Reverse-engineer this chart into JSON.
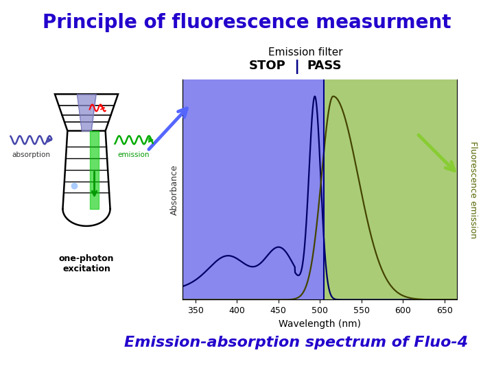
{
  "title": "Principle of fluorescence measurment",
  "title_color": "#2200CC",
  "title_fontsize": 20,
  "subtitle_label": "Emission-absorption spectrum of Fluo-4",
  "subtitle_color": "#2200CC",
  "subtitle_fontsize": 16,
  "emission_filter_label": "Emission filter",
  "stop_label": "STOP",
  "pass_label": "PASS",
  "stop_pass_divider": 505,
  "xlim": [
    335,
    665
  ],
  "ylim": [
    0,
    1.05
  ],
  "xlabel": "Wavelength (nm)",
  "ylabel_left": "Absorbance",
  "ylabel_right": "Fluorescence emission",
  "xticks": [
    350,
    400,
    450,
    500,
    550,
    600,
    650
  ],
  "bg_stop_color": "#8888EE",
  "bg_pass_color": "#AACC77",
  "absorbance_color": "#000066",
  "emission_color": "#444400",
  "divider_color": "#000088",
  "blue_arrow_color": "#5566FF",
  "green_arrow_color": "#88CC33",
  "absorption_wave_color": "#4444AA",
  "emission_wave_color": "#00AA00"
}
